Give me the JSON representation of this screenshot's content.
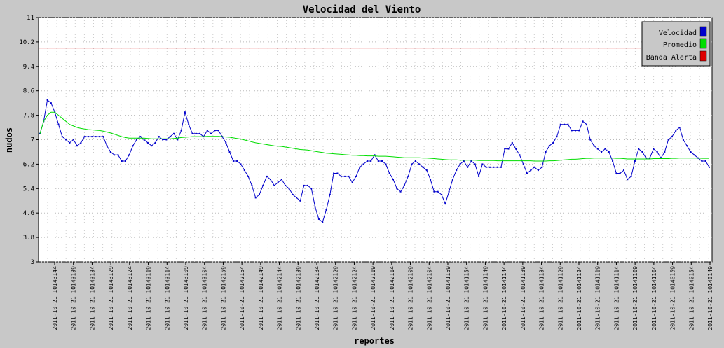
{
  "chart_data": {
    "type": "line",
    "title": "Velocidad del Viento",
    "xlabel": "reportes",
    "ylabel": "nudos",
    "ylim": [
      3,
      11
    ],
    "yticks": [
      3,
      3.8,
      4.6,
      5.4,
      6.2,
      7,
      7.8,
      8.6,
      9.4,
      10.2,
      11
    ],
    "grid": true,
    "legend_position": "top-right",
    "x_tick_labels": [
      "2011-10-21 10143144",
      "2011-10-21 10143139",
      "2011-10-21 10143134",
      "2011-10-21 10143129",
      "2011-10-21 10143124",
      "2011-10-21 10143119",
      "2011-10-21 10143114",
      "2011-10-21 10143109",
      "2011-10-21 10143104",
      "2011-10-21 10142159",
      "2011-10-21 10142154",
      "2011-10-21 10142149",
      "2011-10-21 10142144",
      "2011-10-21 10142139",
      "2011-10-21 10142134",
      "2011-10-21 10142129",
      "2011-10-21 10142124",
      "2011-10-21 10142119",
      "2011-10-21 10142114",
      "2011-10-21 10142109",
      "2011-10-21 10142104",
      "2011-10-21 10141159",
      "2011-10-21 10141154",
      "2011-10-21 10141149",
      "2011-10-21 10141144",
      "2011-10-21 10141139",
      "2011-10-21 10141134",
      "2011-10-21 10141129",
      "2011-10-21 10141124",
      "2011-10-21 10141119",
      "2011-10-21 10141114",
      "2011-10-21 10141109",
      "2011-10-21 10141104",
      "2011-10-21 10140159",
      "2011-10-21 10140154",
      "2011-10-21 10140149"
    ],
    "series": [
      {
        "name": "Velocidad",
        "color": "#0000cc",
        "values": [
          7.2,
          7.6,
          8.3,
          8.2,
          7.9,
          7.5,
          7.1,
          7.0,
          6.9,
          7.0,
          6.8,
          6.9,
          7.1,
          7.1,
          7.1,
          7.1,
          7.1,
          7.1,
          6.8,
          6.6,
          6.5,
          6.5,
          6.3,
          6.3,
          6.5,
          6.8,
          7.0,
          7.1,
          7.0,
          6.9,
          6.8,
          6.9,
          7.1,
          7.0,
          7.0,
          7.1,
          7.2,
          7.0,
          7.3,
          7.9,
          7.5,
          7.2,
          7.2,
          7.2,
          7.1,
          7.3,
          7.2,
          7.3,
          7.3,
          7.1,
          6.9,
          6.6,
          6.3,
          6.3,
          6.2,
          6.0,
          5.8,
          5.5,
          5.1,
          5.2,
          5.5,
          5.8,
          5.7,
          5.5,
          5.6,
          5.7,
          5.5,
          5.4,
          5.2,
          5.1,
          5.0,
          5.5,
          5.5,
          5.4,
          4.8,
          4.4,
          4.3,
          4.7,
          5.2,
          5.9,
          5.9,
          5.8,
          5.8,
          5.8,
          5.6,
          5.8,
          6.1,
          6.2,
          6.3,
          6.3,
          6.5,
          6.3,
          6.3,
          6.2,
          5.9,
          5.7,
          5.4,
          5.3,
          5.5,
          5.8,
          6.2,
          6.3,
          6.2,
          6.1,
          6.0,
          5.7,
          5.3,
          5.3,
          5.2,
          4.9,
          5.3,
          5.7,
          6.0,
          6.2,
          6.3,
          6.1,
          6.3,
          6.2,
          5.8,
          6.2,
          6.1,
          6.1,
          6.1,
          6.1,
          6.1,
          6.7,
          6.7,
          6.9,
          6.7,
          6.5,
          6.2,
          5.9,
          6.0,
          6.1,
          6.0,
          6.1,
          6.6,
          6.8,
          6.9,
          7.1,
          7.5,
          7.5,
          7.5,
          7.3,
          7.3,
          7.3,
          7.6,
          7.5,
          7.0,
          6.8,
          6.7,
          6.6,
          6.7,
          6.6,
          6.3,
          5.9,
          5.9,
          6.0,
          5.7,
          5.8,
          6.3,
          6.7,
          6.6,
          6.4,
          6.4,
          6.7,
          6.6,
          6.4,
          6.6,
          7.0,
          7.1,
          7.3,
          7.4,
          7.0,
          6.8,
          6.6,
          6.5,
          6.4,
          6.3,
          6.3,
          6.1
        ]
      },
      {
        "name": "Promedio",
        "color": "#00dd00",
        "values": [
          7.2,
          7.6,
          7.8,
          7.9,
          7.9,
          7.8,
          7.7,
          7.6,
          7.5,
          7.45,
          7.4,
          7.37,
          7.35,
          7.33,
          7.32,
          7.31,
          7.3,
          7.28,
          7.25,
          7.22,
          7.18,
          7.14,
          7.1,
          7.07,
          7.05,
          7.05,
          7.05,
          7.05,
          7.05,
          7.04,
          7.03,
          7.03,
          7.03,
          7.03,
          7.03,
          7.03,
          7.04,
          7.05,
          7.07,
          7.08,
          7.09,
          7.1,
          7.1,
          7.1,
          7.1,
          7.11,
          7.11,
          7.11,
          7.11,
          7.1,
          7.09,
          7.08,
          7.06,
          7.04,
          7.02,
          6.99,
          6.96,
          6.93,
          6.9,
          6.88,
          6.86,
          6.84,
          6.82,
          6.8,
          6.79,
          6.78,
          6.76,
          6.74,
          6.72,
          6.7,
          6.68,
          6.67,
          6.66,
          6.64,
          6.62,
          6.6,
          6.58,
          6.56,
          6.55,
          6.54,
          6.53,
          6.52,
          6.51,
          6.5,
          6.49,
          6.49,
          6.48,
          6.48,
          6.47,
          6.47,
          6.47,
          6.46,
          6.46,
          6.46,
          6.45,
          6.44,
          6.43,
          6.42,
          6.41,
          6.41,
          6.41,
          6.41,
          6.41,
          6.4,
          6.4,
          6.39,
          6.38,
          6.37,
          6.36,
          6.35,
          6.34,
          6.34,
          6.34,
          6.33,
          6.33,
          6.33,
          6.33,
          6.33,
          6.32,
          6.32,
          6.32,
          6.32,
          6.32,
          6.31,
          6.31,
          6.31,
          6.31,
          6.31,
          6.31,
          6.31,
          6.31,
          6.31,
          6.31,
          6.3,
          6.3,
          6.3,
          6.3,
          6.31,
          6.31,
          6.32,
          6.33,
          6.34,
          6.35,
          6.36,
          6.36,
          6.37,
          6.38,
          6.39,
          6.39,
          6.4,
          6.4,
          6.4,
          6.4,
          6.4,
          6.4,
          6.39,
          6.39,
          6.38,
          6.37,
          6.37,
          6.37,
          6.37,
          6.37,
          6.37,
          6.37,
          6.38,
          6.38,
          6.38,
          6.38,
          6.38,
          6.39,
          6.39,
          6.4,
          6.4,
          6.4,
          6.4,
          6.4,
          6.4,
          6.39,
          6.39,
          6.39
        ]
      },
      {
        "name": "Banda Alerta",
        "color": "#dd0000",
        "values": [
          10.0,
          10.0
        ]
      }
    ]
  }
}
